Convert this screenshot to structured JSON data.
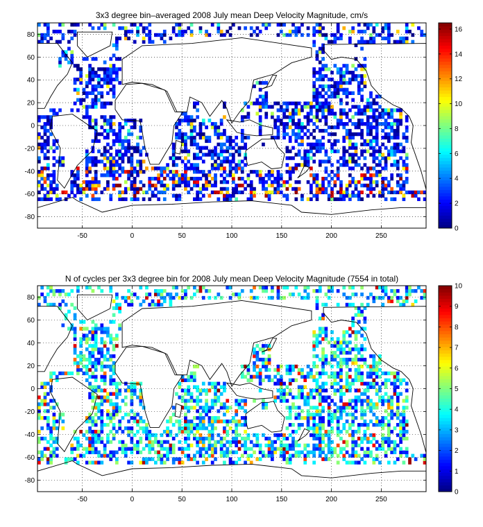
{
  "chart_data": [
    {
      "type": "heatmap",
      "title": "3x3 degree bin–averaged 2008 July mean Deep Velocity Magnitude, cm/s",
      "xlabel": "",
      "ylabel": "",
      "xlim": [
        -95,
        295
      ],
      "ylim": [
        -90,
        90
      ],
      "xticks": [
        -50,
        0,
        50,
        100,
        150,
        200,
        250
      ],
      "yticks": [
        -80,
        -60,
        -40,
        -20,
        0,
        20,
        40,
        60,
        80
      ],
      "grid": true,
      "bin_deg": 3,
      "colorbar": {
        "min": 0,
        "max": 16.5,
        "ticks": [
          0,
          2,
          4,
          6,
          8,
          10,
          12,
          14,
          16
        ],
        "colormap": "jet",
        "placement": "right"
      },
      "seed": 11
    },
    {
      "type": "heatmap",
      "title": "N of cycles per 3x3 degree bin for 2008 July mean Deep Velocity Magnitude (7554 in total)",
      "xlabel": "",
      "ylabel": "",
      "xlim": [
        -95,
        295
      ],
      "ylim": [
        -90,
        90
      ],
      "xticks": [
        -50,
        0,
        50,
        100,
        150,
        200,
        250
      ],
      "yticks": [
        -80,
        -60,
        -40,
        -20,
        0,
        20,
        40,
        60,
        80
      ],
      "grid": true,
      "bin_deg": 3,
      "colorbar": {
        "min": 0,
        "max": 10,
        "ticks": [
          0,
          1,
          2,
          3,
          4,
          5,
          6,
          7,
          8,
          9,
          10
        ],
        "colormap": "jet",
        "placement": "right"
      },
      "seed": 29
    }
  ]
}
